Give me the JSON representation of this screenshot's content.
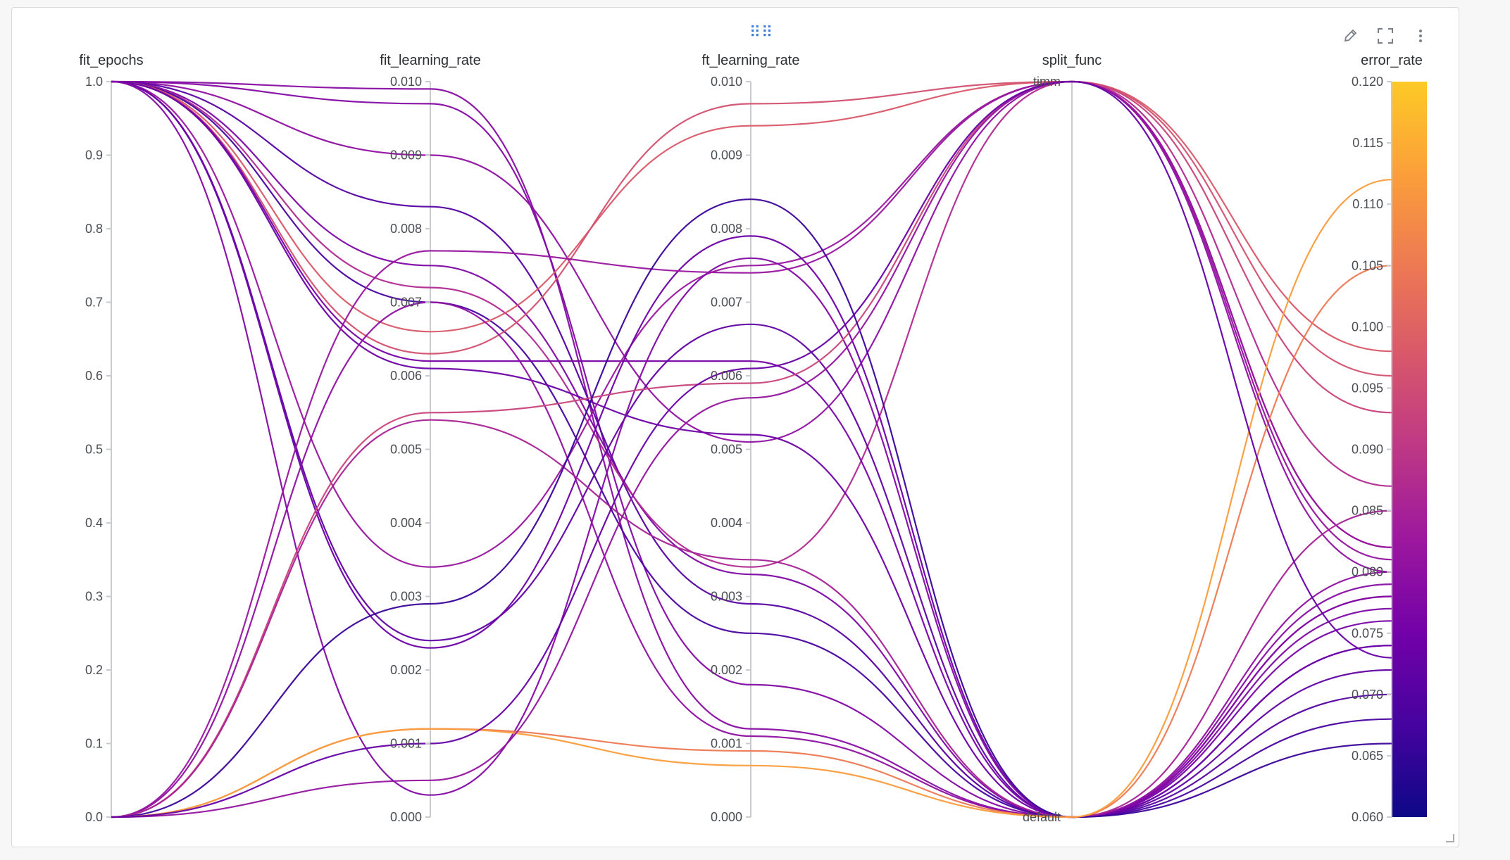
{
  "panel": {
    "drag_handle_icon": "drag-dots-icon",
    "tools": [
      {
        "name": "edit-icon",
        "glyph": "✎"
      },
      {
        "name": "fullscreen-icon",
        "glyph": "⛶"
      },
      {
        "name": "more-options-icon",
        "glyph": "⋮"
      }
    ]
  },
  "chart_data": {
    "type": "parallel_coordinates",
    "axes": [
      {
        "name": "fit_epochs",
        "min": 0,
        "max": 1,
        "ticks": [
          "0.0",
          "0.1",
          "0.2",
          "0.3",
          "0.4",
          "0.5",
          "0.6",
          "0.7",
          "0.8",
          "0.9",
          "1.0"
        ]
      },
      {
        "name": "fit_learning_rate",
        "min": 0,
        "max": 0.01,
        "ticks": [
          "0.000",
          "0.001",
          "0.002",
          "0.003",
          "0.004",
          "0.005",
          "0.006",
          "0.007",
          "0.008",
          "0.009",
          "0.010"
        ]
      },
      {
        "name": "ft_learning_rate",
        "min": 0,
        "max": 0.01,
        "ticks": [
          "0.000",
          "0.001",
          "0.002",
          "0.003",
          "0.004",
          "0.005",
          "0.006",
          "0.007",
          "0.008",
          "0.009",
          "0.010"
        ]
      },
      {
        "name": "split_func",
        "categorical": true,
        "categories": [
          "default",
          "timm"
        ]
      },
      {
        "name": "error_rate",
        "min": 0.06,
        "max": 0.12,
        "ticks": [
          "0.060",
          "0.065",
          "0.070",
          "0.075",
          "0.080",
          "0.085",
          "0.090",
          "0.095",
          "0.100",
          "0.105",
          "0.110",
          "0.115",
          "0.120"
        ],
        "colorbar": true
      }
    ],
    "colorscale": [
      "#0d0887",
      "#46039f",
      "#7201a8",
      "#9c179e",
      "#bd3786",
      "#d8576b",
      "#ed7953",
      "#fb9f3a",
      "#fdca26"
    ],
    "runs": [
      {
        "fit_epochs": 1,
        "fit_learning_rate": 0.0099,
        "ft_learning_rate": 0.0012,
        "split_func": "default",
        "error_rate": 0.079
      },
      {
        "fit_epochs": 1,
        "fit_learning_rate": 0.0097,
        "ft_learning_rate": 0.0018,
        "split_func": "default",
        "error_rate": 0.078
      },
      {
        "fit_epochs": 1,
        "fit_learning_rate": 0.009,
        "ft_learning_rate": 0.0051,
        "split_func": "timm",
        "error_rate": 0.08
      },
      {
        "fit_epochs": 1,
        "fit_learning_rate": 0.0083,
        "ft_learning_rate": 0.0029,
        "split_func": "default",
        "error_rate": 0.07
      },
      {
        "fit_epochs": 1,
        "fit_learning_rate": 0.0075,
        "ft_learning_rate": 0.0033,
        "split_func": "default",
        "error_rate": 0.077
      },
      {
        "fit_epochs": 1,
        "fit_learning_rate": 0.0072,
        "ft_learning_rate": 0.0034,
        "split_func": "timm",
        "error_rate": 0.087
      },
      {
        "fit_epochs": 1,
        "fit_learning_rate": 0.007,
        "ft_learning_rate": 0.0025,
        "split_func": "default",
        "error_rate": 0.068
      },
      {
        "fit_epochs": 1,
        "fit_learning_rate": 0.0066,
        "ft_learning_rate": 0.0094,
        "split_func": "timm",
        "error_rate": 0.098
      },
      {
        "fit_epochs": 1,
        "fit_learning_rate": 0.0063,
        "ft_learning_rate": 0.0097,
        "split_func": "timm",
        "error_rate": 0.096
      },
      {
        "fit_epochs": 1,
        "fit_learning_rate": 0.0062,
        "ft_learning_rate": 0.0062,
        "split_func": "default",
        "error_rate": 0.076
      },
      {
        "fit_epochs": 1,
        "fit_learning_rate": 0.0061,
        "ft_learning_rate": 0.0052,
        "split_func": "default",
        "error_rate": 0.074
      },
      {
        "fit_epochs": 1,
        "fit_learning_rate": 0.0034,
        "ft_learning_rate": 0.0075,
        "split_func": "timm",
        "error_rate": 0.082
      },
      {
        "fit_epochs": 1,
        "fit_learning_rate": 0.0024,
        "ft_learning_rate": 0.0067,
        "split_func": "default",
        "error_rate": 0.072
      },
      {
        "fit_epochs": 1,
        "fit_learning_rate": 0.0023,
        "ft_learning_rate": 0.0079,
        "split_func": "default",
        "error_rate": 0.074
      },
      {
        "fit_epochs": 1,
        "fit_learning_rate": 0.0003,
        "ft_learning_rate": 0.0076,
        "split_func": "default",
        "error_rate": 0.078
      },
      {
        "fit_epochs": 0,
        "fit_learning_rate": 0.0077,
        "ft_learning_rate": 0.0074,
        "split_func": "timm",
        "error_rate": 0.082
      },
      {
        "fit_epochs": 0,
        "fit_learning_rate": 0.007,
        "ft_learning_rate": 0.0011,
        "split_func": "default",
        "error_rate": 0.08
      },
      {
        "fit_epochs": 0,
        "fit_learning_rate": 0.0055,
        "ft_learning_rate": 0.0059,
        "split_func": "timm",
        "error_rate": 0.093
      },
      {
        "fit_epochs": 0,
        "fit_learning_rate": 0.0054,
        "ft_learning_rate": 0.0035,
        "split_func": "default",
        "error_rate": 0.085
      },
      {
        "fit_epochs": 0,
        "fit_learning_rate": 0.0029,
        "ft_learning_rate": 0.0084,
        "split_func": "default",
        "error_rate": 0.066
      },
      {
        "fit_epochs": 0,
        "fit_learning_rate": 0.0012,
        "ft_learning_rate": 0.0009,
        "split_func": "default",
        "error_rate": 0.105
      },
      {
        "fit_epochs": 0,
        "fit_learning_rate": 0.0012,
        "ft_learning_rate": 0.0007,
        "split_func": "default",
        "error_rate": 0.112
      },
      {
        "fit_epochs": 0,
        "fit_learning_rate": 0.0005,
        "ft_learning_rate": 0.0057,
        "split_func": "timm",
        "error_rate": 0.081
      },
      {
        "fit_epochs": 0,
        "fit_learning_rate": 0.001,
        "ft_learning_rate": 0.0061,
        "split_func": "timm",
        "error_rate": 0.073
      }
    ]
  }
}
